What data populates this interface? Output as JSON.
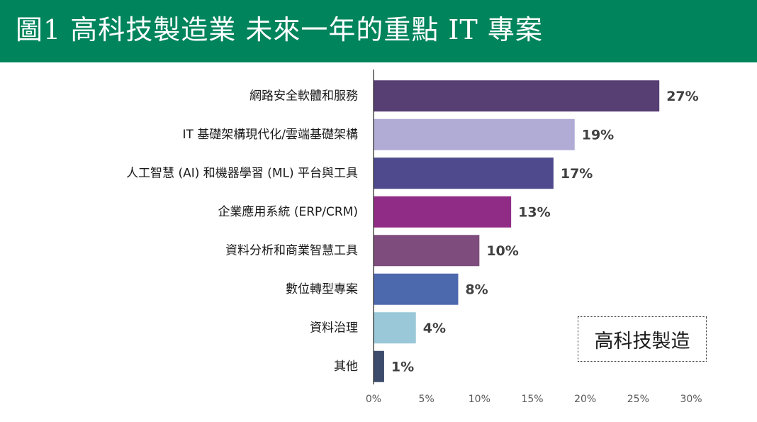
{
  "header": {
    "title": "圖1 高科技製造業 未來一年的重點 IT 專案"
  },
  "colors": {
    "banner": "#00845c"
  },
  "chart_data": {
    "type": "bar",
    "orientation": "horizontal",
    "title": "",
    "categories": [
      "網路安全軟體和服務",
      "IT 基礎架構現代化/雲端基礎架構",
      "人工智慧 (AI) 和機器學習 (ML) 平台與工具",
      "企業應用系統 (ERP/CRM)",
      "資料分析和商業智慧工具",
      "數位轉型專案",
      "資料治理",
      "其他"
    ],
    "series": [
      {
        "name": "高科技製造",
        "values": [
          27,
          19,
          17,
          13,
          10,
          8,
          4,
          1
        ]
      }
    ],
    "value_labels": [
      "27%",
      "19%",
      "17%",
      "13%",
      "10%",
      "8%",
      "4%",
      "1%"
    ],
    "bar_colors": [
      "#573e73",
      "#b0acd6",
      "#4e4a8d",
      "#902c86",
      "#7e4d7d",
      "#4d69ad",
      "#9ac8d8",
      "#3c4a6c"
    ],
    "xlim": [
      0,
      30
    ],
    "xticks": [
      0,
      5,
      10,
      15,
      20,
      25,
      30
    ],
    "xtick_labels": [
      "0%",
      "5%",
      "10%",
      "15%",
      "20%",
      "25%",
      "30%"
    ],
    "grid": false,
    "legend": {
      "label": "高科技製造",
      "placement": "bottom-right"
    }
  }
}
